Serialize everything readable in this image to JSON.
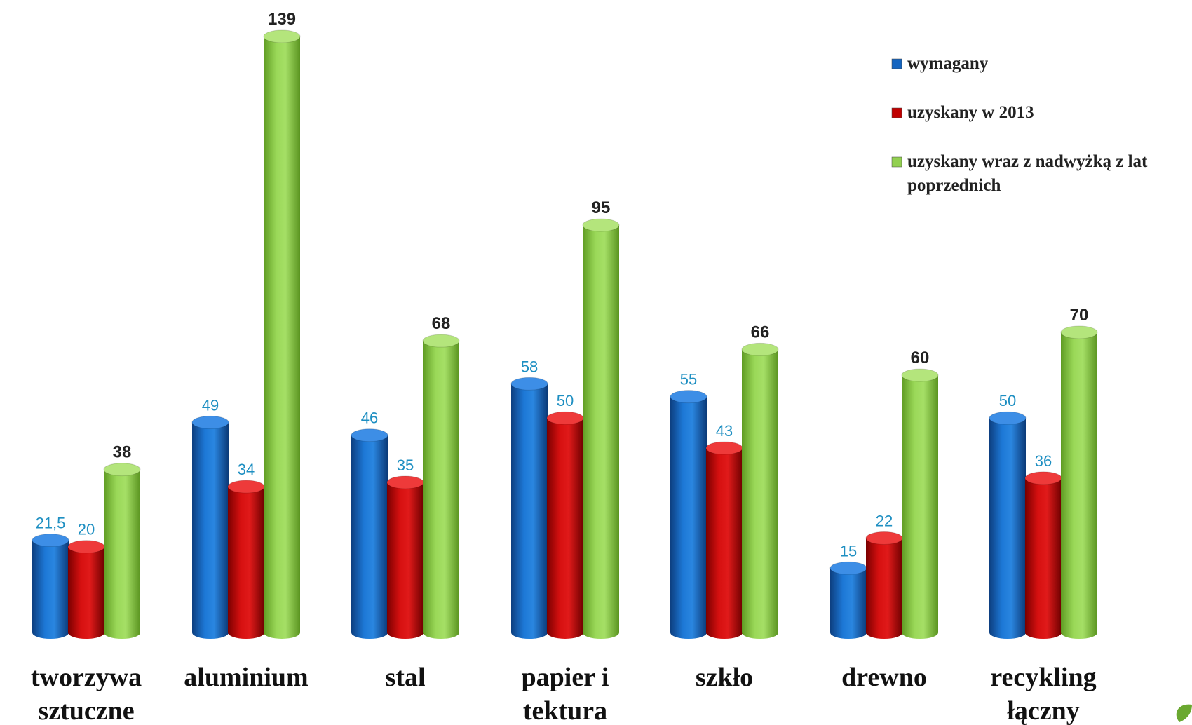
{
  "chart_data": {
    "type": "bar",
    "categories": [
      [
        "tworzywa",
        "sztuczne"
      ],
      [
        "aluminium"
      ],
      [
        "stal"
      ],
      [
        "papier i",
        "tektura"
      ],
      [
        "szkło"
      ],
      [
        "drewno"
      ],
      [
        "recykling",
        "łączny"
      ]
    ],
    "series": [
      {
        "name": "wymagany",
        "values": [
          21.5,
          49,
          46,
          58,
          55,
          15,
          50
        ],
        "value_labels": [
          "21,5",
          "49",
          "46",
          "58",
          "55",
          "15",
          "50"
        ],
        "color": "#1565c0"
      },
      {
        "name": "uzyskany w 2013",
        "values": [
          20,
          34,
          35,
          50,
          43,
          22,
          36
        ],
        "value_labels": [
          "20",
          "34",
          "35",
          "50",
          "43",
          "22",
          "36"
        ],
        "color": "#c00000"
      },
      {
        "name": "uzyskany wraz z nadwyżką z lat poprzednich",
        "name_lines": [
          "uzyskany wraz z nadwyżką z lat",
          "poprzednich"
        ],
        "values": [
          38,
          139,
          68,
          95,
          66,
          60,
          70
        ],
        "value_labels": [
          "38",
          "139",
          "68",
          "95",
          "66",
          "60",
          "70"
        ],
        "color": "#92d050"
      }
    ],
    "ylim": [
      0,
      139
    ],
    "grid": false,
    "legend": "top-right",
    "title": "",
    "xlabel": "",
    "ylabel": ""
  }
}
